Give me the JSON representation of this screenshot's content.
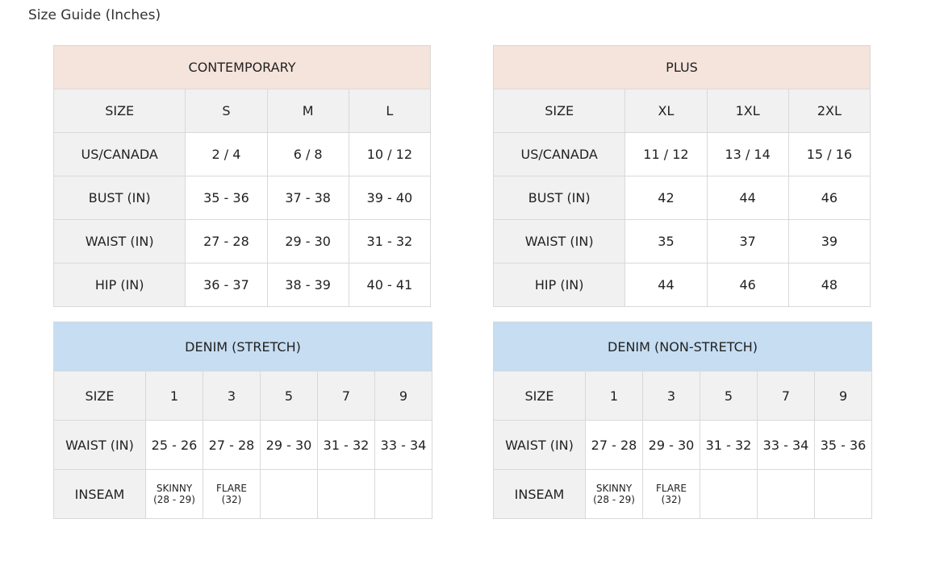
{
  "title": "Size Guide (Inches)",
  "colors": {
    "contemporary_header": "#f5e4dc",
    "denim_header": "#c6ddf2",
    "label_bg": "#f1f1f1",
    "border": "#d9d9d9"
  },
  "tables": [
    {
      "heading": "CONTEMPORARY",
      "kind": "top",
      "rows": [
        [
          "SIZE",
          "S",
          "M",
          "L"
        ],
        [
          "US/CANADA",
          "2 / 4",
          "6 / 8",
          "10 / 12"
        ],
        [
          "BUST (IN)",
          "35 - 36",
          "37 - 38",
          "39 - 40"
        ],
        [
          "WAIST (IN)",
          "27 - 28",
          "29 - 30",
          "31 - 32"
        ],
        [
          "HIP (IN)",
          "36 - 37",
          "38 - 39",
          "40 - 41"
        ]
      ]
    },
    {
      "heading": "PLUS",
      "kind": "top",
      "rows": [
        [
          "SIZE",
          "XL",
          "1XL",
          "2XL"
        ],
        [
          "US/CANADA",
          "11 / 12",
          "13 / 14",
          "15 / 16"
        ],
        [
          "BUST (IN)",
          "42",
          "44",
          "46"
        ],
        [
          "WAIST (IN)",
          "35",
          "37",
          "39"
        ],
        [
          "HIP (IN)",
          "44",
          "46",
          "48"
        ]
      ]
    },
    {
      "heading": "DENIM (STRETCH)",
      "kind": "den",
      "rows": [
        [
          "SIZE",
          "1",
          "3",
          "5",
          "7",
          "9"
        ],
        [
          "WAIST (IN)",
          "25 - 26",
          "27 - 28",
          "29 - 30",
          "31 - 32",
          "33 - 34"
        ],
        [
          "INSEAM",
          "SKINNY\n(28 - 29)",
          "FLARE\n(32)",
          "",
          "",
          ""
        ]
      ]
    },
    {
      "heading": "DENIM (NON-STRETCH)",
      "kind": "den",
      "rows": [
        [
          "SIZE",
          "1",
          "3",
          "5",
          "7",
          "9"
        ],
        [
          "WAIST (IN)",
          "27 - 28",
          "29 - 30",
          "31 - 32",
          "33 - 34",
          "35 - 36"
        ],
        [
          "INSEAM",
          "SKINNY\n(28 - 29)",
          "FLARE\n(32)",
          "",
          "",
          ""
        ]
      ]
    }
  ]
}
